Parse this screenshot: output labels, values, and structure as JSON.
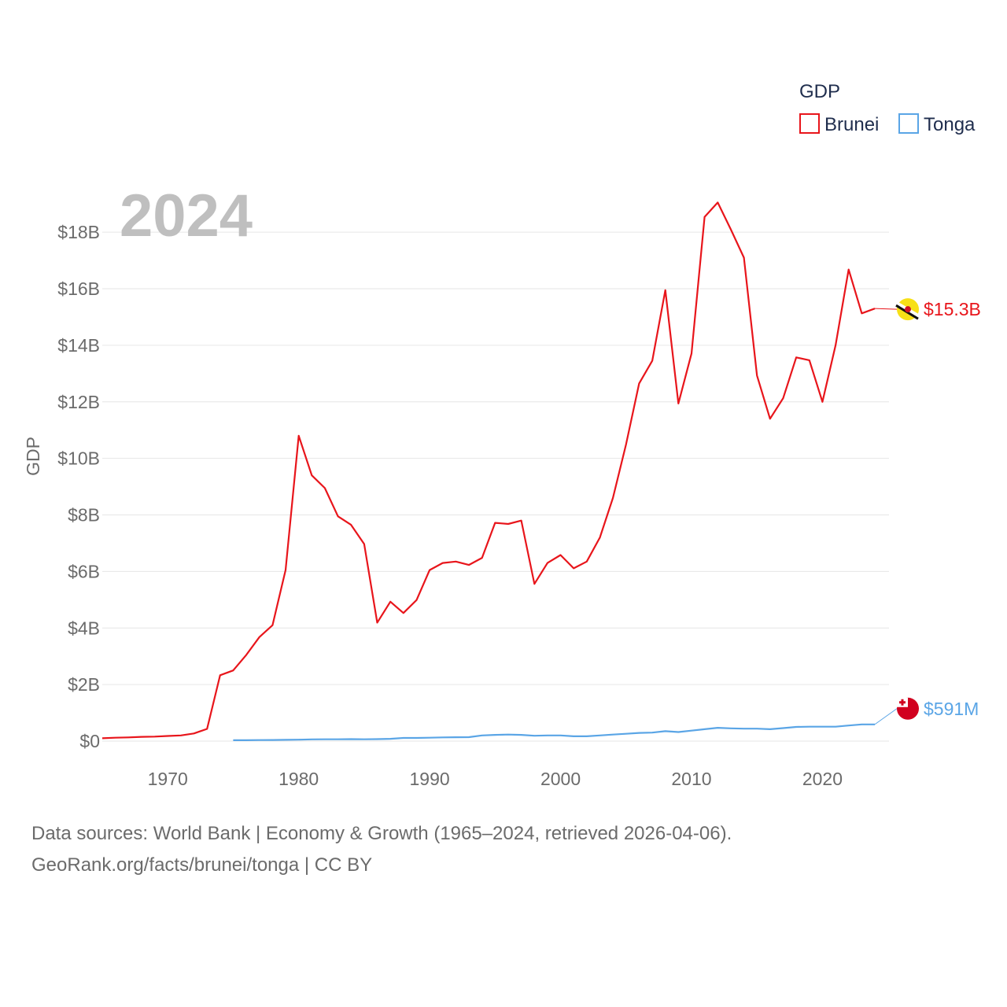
{
  "chart_data": {
    "type": "line",
    "title": "GDP",
    "ylabel": "GDP",
    "xlabel": "",
    "watermark_year": "2024",
    "xlim": [
      1965,
      2024
    ],
    "ylim": [
      0,
      19200000000
    ],
    "x_ticks": [
      1970,
      1980,
      1990,
      2000,
      2010,
      2020
    ],
    "x_tick_labels": [
      "1970",
      "1980",
      "1990",
      "2000",
      "2010",
      "2020"
    ],
    "y_ticks": [
      0,
      2000000000,
      4000000000,
      6000000000,
      8000000000,
      10000000000,
      12000000000,
      14000000000,
      16000000000,
      18000000000
    ],
    "y_tick_labels": [
      "$0",
      "$2B",
      "$4B",
      "$6B",
      "$8B",
      "$10B",
      "$12B",
      "$14B",
      "$16B",
      "$18B"
    ],
    "grid": true,
    "legend_placement": "top-right",
    "series": [
      {
        "name": "Brunei",
        "color": "#e8151b",
        "end_label": "$15.3B",
        "flag_icon": "brunei-flag-icon",
        "x": [
          1965,
          1966,
          1967,
          1968,
          1969,
          1970,
          1971,
          1972,
          1973,
          1974,
          1975,
          1976,
          1977,
          1978,
          1979,
          1980,
          1981,
          1982,
          1983,
          1984,
          1985,
          1986,
          1987,
          1988,
          1989,
          1990,
          1991,
          1992,
          1993,
          1994,
          1995,
          1996,
          1997,
          1998,
          1999,
          2000,
          2001,
          2002,
          2003,
          2004,
          2005,
          2006,
          2007,
          2008,
          2009,
          2010,
          2011,
          2012,
          2013,
          2014,
          2015,
          2016,
          2017,
          2018,
          2019,
          2020,
          2021,
          2022,
          2023,
          2024
        ],
        "values": [
          100000000.0,
          120000000.0,
          130000000.0,
          150000000.0,
          160000000.0,
          180000000.0,
          200000000.0,
          270000000.0,
          430000000.0,
          2330000000.0,
          2500000000.0,
          3050000000.0,
          3680000000.0,
          4100000000.0,
          6050000000.0,
          10800000000.0,
          9400000000.0,
          8950000000.0,
          7950000000.0,
          7650000000.0,
          6970000000.0,
          4190000000.0,
          4930000000.0,
          4530000000.0,
          4990000000.0,
          6050000000.0,
          6300000000.0,
          6350000000.0,
          6230000000.0,
          6480000000.0,
          7720000000.0,
          7680000000.0,
          7800000000.0,
          5560000000.0,
          6300000000.0,
          6580000000.0,
          6110000000.0,
          6350000000.0,
          7200000000.0,
          8600000000.0,
          10500000000.0,
          12650000000.0,
          13450000000.0,
          15950000000.0,
          11940000000.0,
          13710000000.0,
          18540000000.0,
          19050000000.0,
          18100000000.0,
          17100000000.0,
          12930000000.0,
          11400000000.0,
          12130000000.0,
          13570000000.0,
          13470000000.0,
          12000000000.0,
          14000000000.0,
          16680000000.0,
          15130000000.0,
          15300000000.0
        ]
      },
      {
        "name": "Tonga",
        "color": "#5aa5e6",
        "end_label": "$591M",
        "flag_icon": "tonga-flag-icon",
        "x": [
          1975,
          1976,
          1977,
          1978,
          1979,
          1980,
          1981,
          1982,
          1983,
          1984,
          1985,
          1986,
          1987,
          1988,
          1989,
          1990,
          1991,
          1992,
          1993,
          1994,
          1995,
          1996,
          1997,
          1998,
          1999,
          2000,
          2001,
          2002,
          2003,
          2004,
          2005,
          2006,
          2007,
          2008,
          2009,
          2010,
          2011,
          2012,
          2013,
          2014,
          2015,
          2016,
          2017,
          2018,
          2019,
          2020,
          2021,
          2022,
          2023,
          2024
        ],
        "values": [
          30000000.0,
          30000000.0,
          35000000.0,
          40000000.0,
          45000000.0,
          50000000.0,
          60000000.0,
          65000000.0,
          65000000.0,
          70000000.0,
          65000000.0,
          70000000.0,
          80000000.0,
          110000000.0,
          110000000.0,
          120000000.0,
          130000000.0,
          135000000.0,
          140000000.0,
          200000000.0,
          220000000.0,
          230000000.0,
          220000000.0,
          190000000.0,
          200000000.0,
          200000000.0,
          170000000.0,
          170000000.0,
          200000000.0,
          230000000.0,
          260000000.0,
          290000000.0,
          300000000.0,
          350000000.0,
          320000000.0,
          370000000.0,
          420000000.0,
          470000000.0,
          450000000.0,
          440000000.0,
          440000000.0,
          420000000.0,
          460000000.0,
          500000000.0,
          510000000.0,
          510000000.0,
          510000000.0,
          550000000.0,
          590000000.0,
          591000000.0
        ]
      }
    ],
    "source_line": "Data sources: World Bank | Economy & Growth (1965–2024, retrieved 2026-04-06).",
    "credit_line": "GeoRank.org/facts/brunei/tonga | CC BY"
  }
}
